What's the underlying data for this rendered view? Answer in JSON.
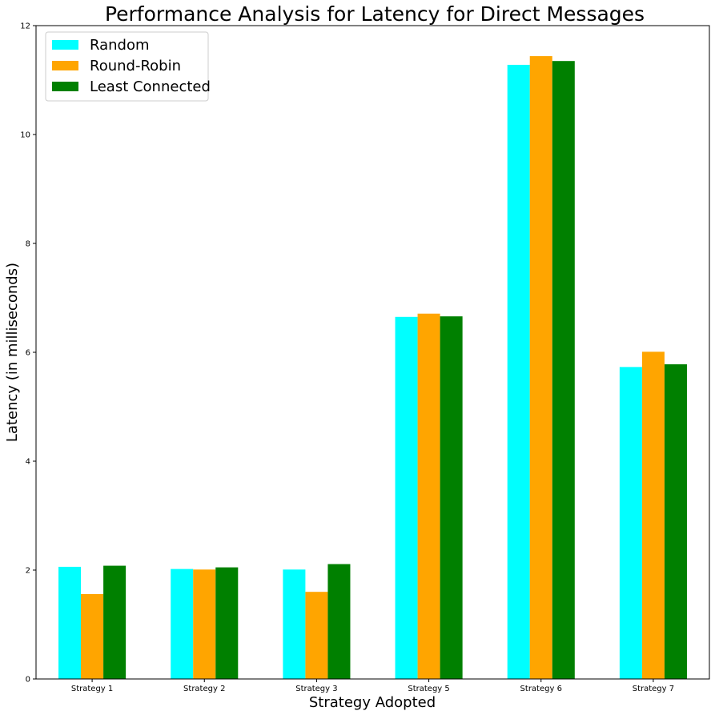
{
  "chart_data": {
    "type": "bar",
    "title": "Performance Analysis for Latency for Direct Messages",
    "xlabel": "Strategy Adopted",
    "ylabel": "Latency (in milliseconds)",
    "categories": [
      "Strategy 1",
      "Strategy 2",
      "Strategy 3",
      "Strategy 5",
      "Strategy 6",
      "Strategy 7"
    ],
    "ylim": [
      0,
      12
    ],
    "yticks": [
      0,
      2,
      4,
      6,
      8,
      10,
      12
    ],
    "legend_position": "top-left",
    "grid": false,
    "series": [
      {
        "name": "Random",
        "color": "#00ffff",
        "values": [
          2.06,
          2.02,
          2.01,
          6.65,
          11.28,
          5.73
        ]
      },
      {
        "name": "Round-Robin",
        "color": "#ffa500",
        "values": [
          1.56,
          2.01,
          1.6,
          6.71,
          11.44,
          6.01
        ]
      },
      {
        "name": "Least Connected",
        "color": "#008000",
        "values": [
          2.08,
          2.05,
          2.11,
          6.66,
          11.35,
          5.78
        ]
      }
    ]
  }
}
